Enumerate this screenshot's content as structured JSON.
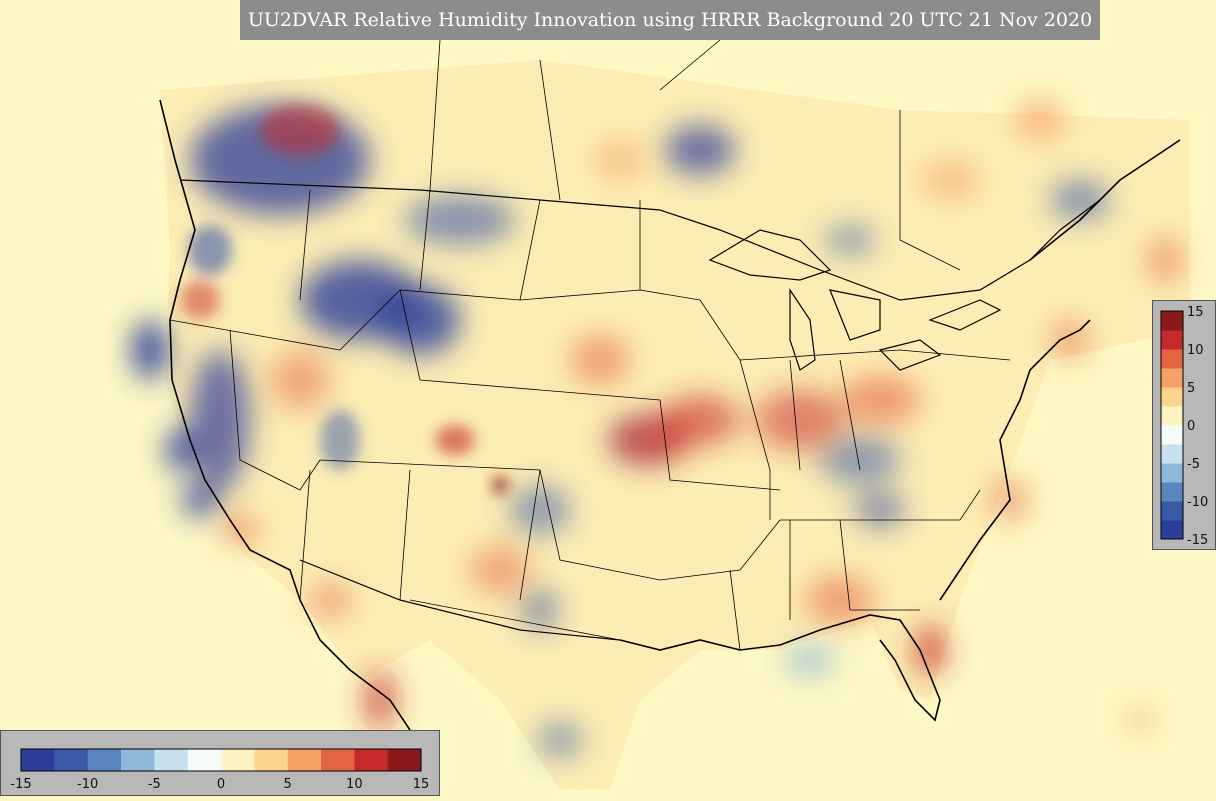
{
  "title": "UU2DVAR Relative Humidity Innovation using HRRR Background 20 UTC 21 Nov 2020",
  "colorbar": {
    "ticks": [
      "-15",
      "-10",
      "-5",
      "0",
      "5",
      "10",
      "15"
    ],
    "min": -15,
    "max": 15,
    "colors": [
      "#2c3d9a",
      "#3a59a8",
      "#5a86bf",
      "#8fb7d8",
      "#c7e0ee",
      "#f4fbf9",
      "#fdf3c0",
      "#fbd38d",
      "#f6a165",
      "#e6633f",
      "#c62a2a",
      "#8c1a1a"
    ]
  },
  "features": [
    "state-boundaries",
    "country-borders",
    "coastlines",
    "great-lakes"
  ]
}
